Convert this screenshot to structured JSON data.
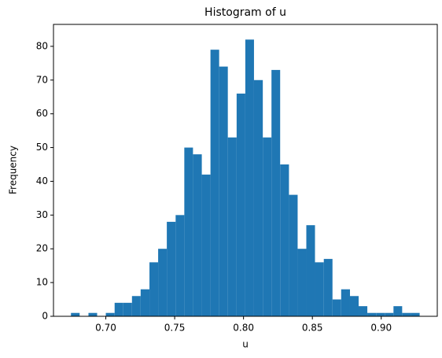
{
  "chart_data": {
    "type": "histogram",
    "title": "Histogram of u",
    "x_label": "u",
    "y_label": "Frequency",
    "color": "#1f77b4",
    "bins": [
      0.6747,
      0.681,
      0.6874,
      0.6937,
      0.7,
      0.7064,
      0.7127,
      0.719,
      0.7253,
      0.7317,
      0.738,
      0.7443,
      0.7507,
      0.757,
      0.7633,
      0.7697,
      0.776,
      0.7823,
      0.7886,
      0.795,
      0.8013,
      0.8076,
      0.814,
      0.8203,
      0.8266,
      0.833,
      0.8393,
      0.8456,
      0.8519,
      0.8583,
      0.8646,
      0.8709,
      0.8773,
      0.8836,
      0.8899,
      0.8963,
      0.9026,
      0.9089,
      0.9152,
      0.9216,
      0.9279
    ],
    "values": [
      1,
      0,
      1,
      0,
      1,
      4,
      4,
      6,
      8,
      16,
      20,
      28,
      30,
      50,
      48,
      42,
      79,
      74,
      53,
      66,
      82,
      70,
      53,
      73,
      45,
      36,
      20,
      27,
      16,
      17,
      5,
      8,
      6,
      3,
      1,
      1,
      1,
      3,
      1,
      1
    ],
    "xlim": [
      0.662,
      0.9407
    ],
    "xticks": [
      {
        "value": 0.7,
        "label": "0.70"
      },
      {
        "value": 0.75,
        "label": "0.75"
      },
      {
        "value": 0.8,
        "label": "0.80"
      },
      {
        "value": 0.85,
        "label": "0.85"
      },
      {
        "value": 0.9,
        "label": "0.90"
      }
    ],
    "ylim": [
      0,
      86.5
    ],
    "yticks": [
      0,
      10,
      20,
      30,
      40,
      50,
      60,
      70,
      80
    ]
  }
}
